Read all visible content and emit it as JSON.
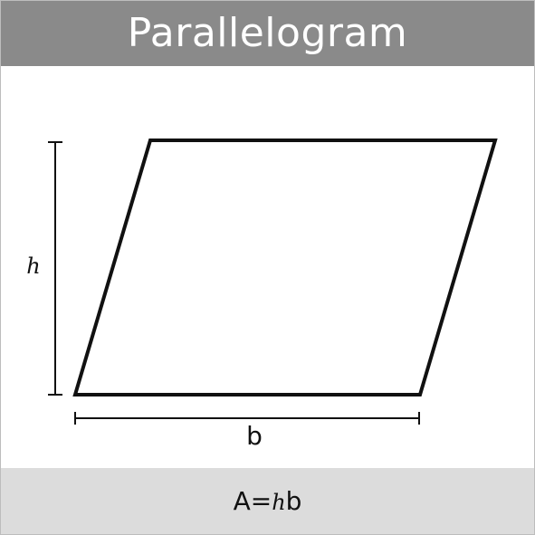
{
  "header": {
    "title": "Parallelogram"
  },
  "diagram": {
    "height_label": "h",
    "base_label": "b"
  },
  "footer": {
    "formula_prefix": "A=",
    "formula_h": "h",
    "formula_b": "b"
  },
  "colors": {
    "header_bg": "#8a8a8a",
    "footer_bg": "#dcdcdc",
    "stroke": "#111111"
  }
}
